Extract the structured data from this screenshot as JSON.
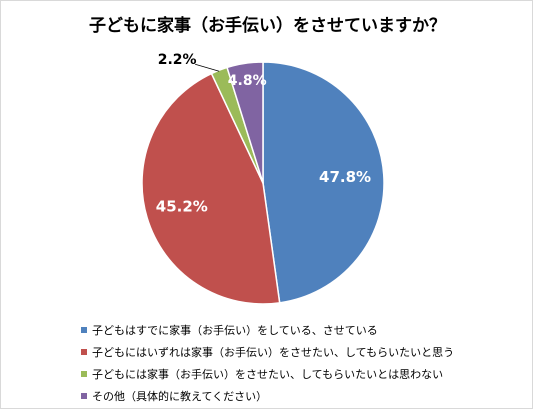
{
  "chart_data": {
    "type": "pie",
    "title": "子どもに家事（お手伝い）をさせていますか？",
    "categories": [
      "子どもはすでに家事（お手伝い）をしている、させている",
      "子どもにはいずれは家事（お手伝い）をさせたい、してもらいたいと思う",
      "子どもには家事（お手伝い）をさせたい、してもらいたいとは思わない",
      "その他（具体的に教えてください）"
    ],
    "values": [
      47.8,
      45.2,
      2.2,
      4.8
    ],
    "labels": [
      "47.8%",
      "45.2%",
      "2.2%",
      "4.8%"
    ],
    "colors": [
      "#4F81BD",
      "#C0504D",
      "#9BBB59",
      "#8064A2"
    ],
    "legend_position": "bottom",
    "start_angle_deg": 0,
    "direction": "clockwise"
  }
}
